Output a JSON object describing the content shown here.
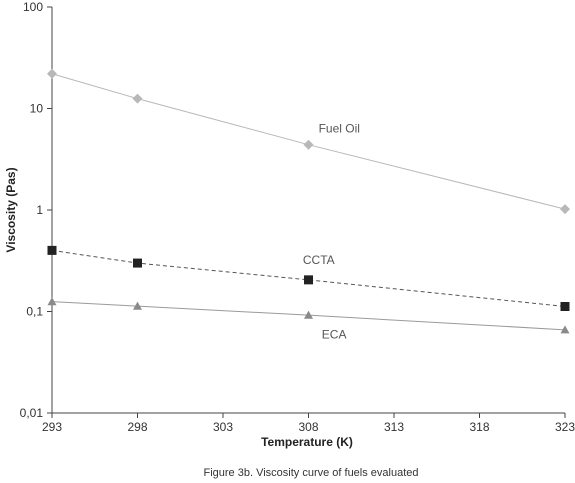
{
  "caption": "Figure 3b. Viscosity curve of fuels evaluated",
  "chart_data": {
    "type": "line",
    "xlabel": "Temperature (K)",
    "ylabel": "Viscosity (Pas)",
    "xlim": [
      293,
      323
    ],
    "ylim": [
      0.01,
      100
    ],
    "y_scale": "log",
    "grid": false,
    "x_ticks": [
      293,
      298,
      303,
      308,
      313,
      318,
      323
    ],
    "x_tick_labels": [
      "293",
      "298",
      "303",
      "308",
      "313",
      "318",
      "323"
    ],
    "y_ticks": [
      0.01,
      0.1,
      1,
      10,
      100
    ],
    "y_tick_labels": [
      "0,01",
      "0,1",
      "1",
      "10",
      "100"
    ],
    "series": [
      {
        "name": "Fuel Oil",
        "x": [
          293,
          298,
          308,
          323
        ],
        "values": [
          22,
          12.5,
          4.4,
          1.02
        ],
        "marker": "diamond",
        "color": "#b8b8b8",
        "line_color": "#b8b8b8",
        "line_style": "solid"
      },
      {
        "name": "CCTA",
        "x": [
          293,
          298,
          308,
          323
        ],
        "values": [
          0.4,
          0.3,
          0.205,
          0.112
        ],
        "marker": "square",
        "color": "#222222",
        "line_color": "#555555",
        "line_style": "dashed"
      },
      {
        "name": "ECA",
        "x": [
          293,
          298,
          308,
          323
        ],
        "values": [
          0.125,
          0.113,
          0.092,
          0.066
        ],
        "marker": "triangle",
        "color": "#8a8a8a",
        "line_color": "#9a9a9a",
        "line_style": "solid"
      }
    ]
  }
}
